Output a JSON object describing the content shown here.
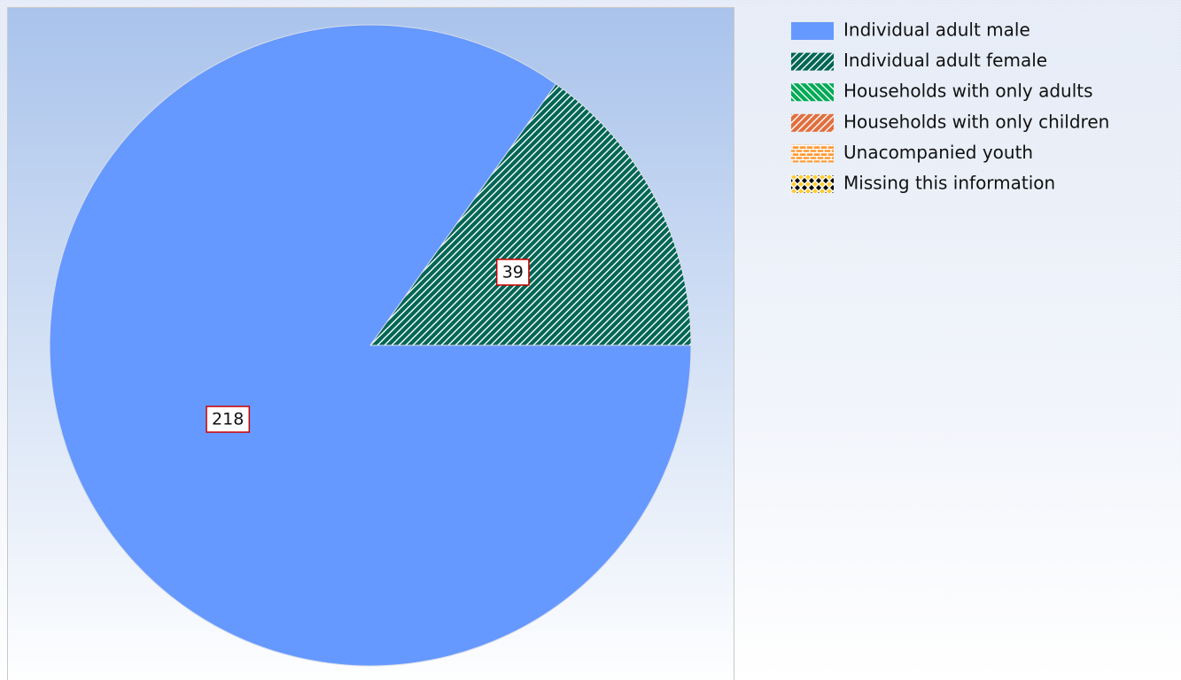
{
  "chart_data": {
    "type": "pie",
    "categories": [
      "Individual adult male",
      "Individual adult female",
      "Households with only adults",
      "Households with only children",
      "Unacompanied youth",
      "Missing this information"
    ],
    "values": [
      218,
      39,
      0,
      0,
      0,
      0
    ],
    "colors": [
      "#6699ff",
      "#006655",
      "#00aa55",
      "#e07040",
      "#ff9933",
      "#ffcc33"
    ],
    "patterns": [
      "solid",
      "slash",
      "backslash",
      "slash",
      "brick",
      "diamond"
    ]
  }
}
